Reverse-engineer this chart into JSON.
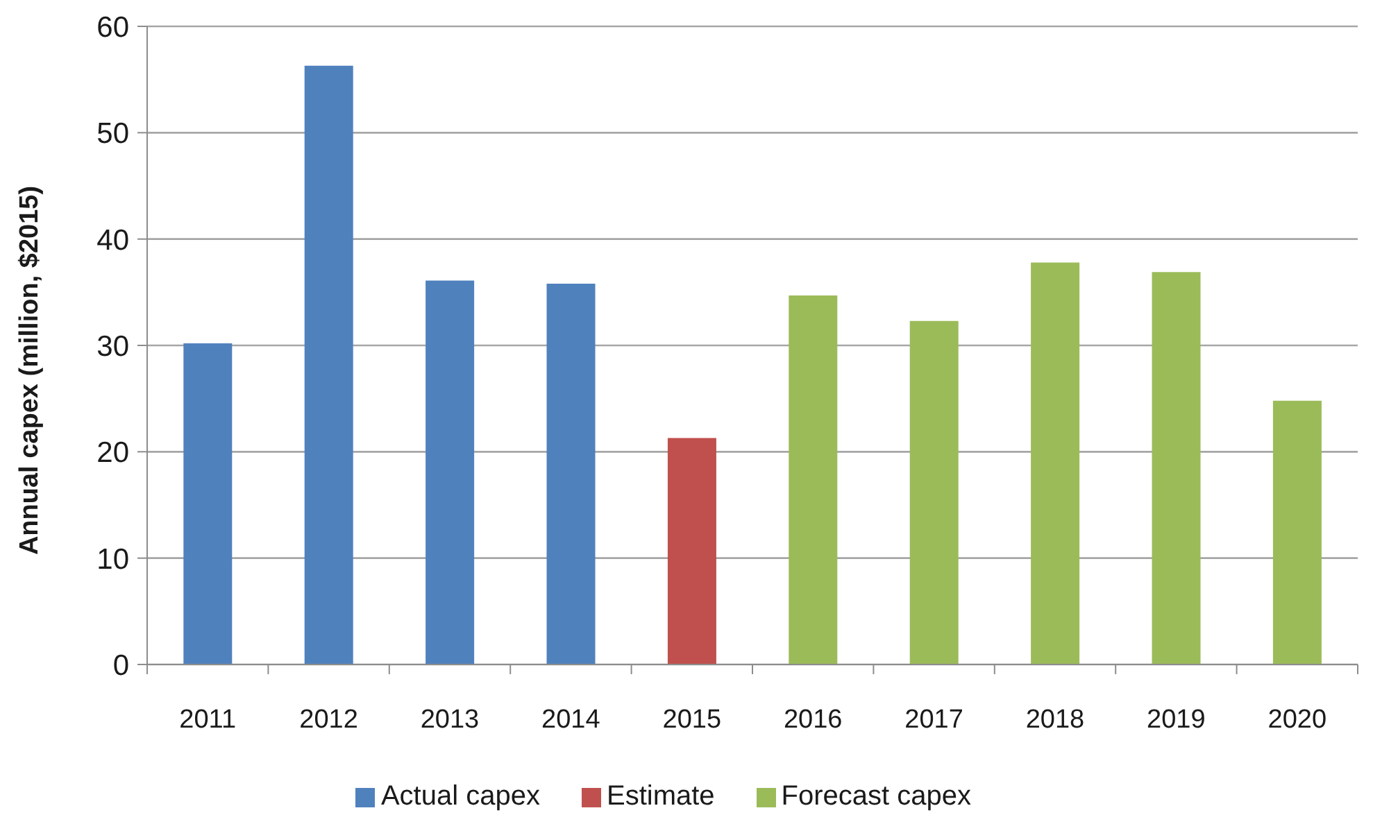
{
  "chart_data": {
    "type": "bar",
    "ylabel": "Annual capex (million, $2015)",
    "categories": [
      "2011",
      "2012",
      "2013",
      "2014",
      "2015",
      "2016",
      "2017",
      "2018",
      "2019",
      "2020"
    ],
    "series": [
      {
        "name": "Actual capex",
        "color": "#4f81bd",
        "values": [
          30.2,
          56.3,
          36.1,
          35.8,
          null,
          null,
          null,
          null,
          null,
          null
        ]
      },
      {
        "name": "Estimate",
        "color": "#c0504d",
        "values": [
          null,
          null,
          null,
          null,
          21.3,
          null,
          null,
          null,
          null,
          null
        ]
      },
      {
        "name": "Forecast capex",
        "color": "#9bbb59",
        "values": [
          null,
          null,
          null,
          null,
          null,
          34.7,
          32.3,
          37.8,
          36.9,
          24.8
        ]
      }
    ],
    "ylim": [
      0,
      60
    ],
    "yticks": [
      0,
      10,
      20,
      30,
      40,
      50,
      60
    ],
    "grid": "y",
    "legend": "bottom"
  }
}
